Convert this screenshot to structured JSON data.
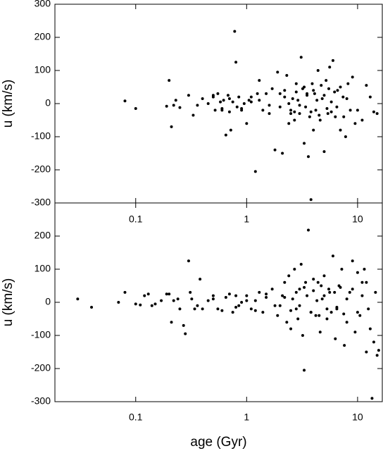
{
  "chart_data": [
    {
      "type": "scatter",
      "ylabel": "u (km/s)",
      "xlog": true,
      "color": "#000000",
      "xlim": [
        0.0187,
        16.7
      ],
      "ylim": [
        -300,
        300
      ],
      "xticks": [
        0.1,
        1,
        10
      ],
      "yticks": [
        -300,
        -200,
        -100,
        0,
        100,
        200,
        300
      ],
      "x": [
        0.08,
        0.1,
        0.19,
        0.2,
        0.21,
        0.22,
        0.23,
        0.25,
        0.3,
        0.33,
        0.36,
        0.4,
        0.45,
        0.5,
        0.52,
        0.55,
        0.58,
        0.6,
        0.62,
        0.65,
        0.68,
        0.7,
        0.72,
        0.75,
        0.78,
        0.8,
        0.82,
        0.85,
        0.9,
        0.95,
        1.0,
        1.05,
        1.1,
        1.2,
        1.25,
        1.3,
        1.4,
        1.5,
        1.6,
        1.7,
        1.8,
        1.9,
        2.0,
        2.1,
        2.2,
        2.3,
        2.4,
        2.5,
        2.6,
        2.7,
        2.8,
        2.9,
        3.0,
        3.1,
        3.2,
        3.3,
        3.4,
        3.5,
        3.6,
        3.7,
        3.8,
        3.9,
        4.0,
        4.1,
        4.2,
        4.4,
        4.6,
        4.8,
        5.0,
        5.2,
        5.4,
        5.6,
        5.8,
        6.0,
        6.3,
        6.6,
        7.0,
        7.4,
        7.8,
        8.2,
        8.6,
        9.0,
        9.5,
        10,
        11,
        12,
        13,
        14,
        15,
        2.2,
        2.5,
        2.8,
        3.0,
        3.3,
        3.5,
        3.8,
        4.0,
        4.3,
        4.5,
        4.7,
        5.0,
        5.3,
        5.5,
        5.8,
        6.2,
        6.5,
        7.0,
        7.5,
        8.0,
        0.5,
        0.6,
        0.7,
        0.9,
        1.1,
        1.3,
        1.6,
        2.0,
        2.4,
        2.7
      ],
      "values": [
        8,
        -15,
        -8,
        70,
        -70,
        -5,
        10,
        -12,
        25,
        -35,
        -5,
        15,
        0,
        25,
        -20,
        30,
        5,
        -20,
        10,
        -95,
        25,
        -25,
        -80,
        5,
        218,
        125,
        -10,
        20,
        -15,
        0,
        -60,
        10,
        20,
        -205,
        30,
        70,
        -20,
        30,
        -30,
        45,
        -140,
        95,
        -10,
        -150,
        40,
        85,
        -60,
        -20,
        15,
        -50,
        60,
        10,
        -30,
        140,
        45,
        -120,
        -10,
        25,
        -160,
        -40,
        -290,
        60,
        -80,
        30,
        -20,
        100,
        -50,
        15,
        -145,
        70,
        -30,
        110,
        5,
        130,
        -40,
        40,
        -80,
        20,
        -100,
        60,
        -20,
        80,
        -60,
        -20,
        -50,
        55,
        20,
        -25,
        -30,
        20,
        -30,
        35,
        -5,
        50,
        30,
        -25,
        40,
        10,
        -35,
        55,
        25,
        -15,
        45,
        -25,
        35,
        -10,
        50,
        -40,
        15,
        20,
        -15,
        15,
        -20,
        5,
        10,
        -5,
        30,
        0,
        -25
      ]
    },
    {
      "type": "scatter",
      "ylabel": "u (km/s)",
      "xlabel": "age (Gyr)",
      "xlog": true,
      "color": "#000000",
      "xlim": [
        0.0187,
        16.7
      ],
      "ylim": [
        -300,
        300
      ],
      "xticks": [
        0.1,
        1,
        10
      ],
      "yticks": [
        -300,
        -200,
        -100,
        0,
        100,
        200
      ],
      "x": [
        0.03,
        0.04,
        0.07,
        0.08,
        0.1,
        0.11,
        0.12,
        0.13,
        0.14,
        0.15,
        0.17,
        0.19,
        0.2,
        0.21,
        0.22,
        0.24,
        0.25,
        0.27,
        0.28,
        0.3,
        0.31,
        0.32,
        0.34,
        0.36,
        0.38,
        0.4,
        0.45,
        0.5,
        0.55,
        0.6,
        0.65,
        0.7,
        0.75,
        0.8,
        0.85,
        0.9,
        1.0,
        1.1,
        1.2,
        1.3,
        1.4,
        1.5,
        1.7,
        1.9,
        2.0,
        2.1,
        2.2,
        2.3,
        2.4,
        2.5,
        2.6,
        2.7,
        2.8,
        2.9,
        3.0,
        3.1,
        3.2,
        3.3,
        3.4,
        3.6,
        3.8,
        4.0,
        4.2,
        4.4,
        4.6,
        4.8,
        5.0,
        5.3,
        5.6,
        6.0,
        6.3,
        6.5,
        6.8,
        7.2,
        7.6,
        8.0,
        8.5,
        9.0,
        9.5,
        10,
        10.5,
        11,
        11.5,
        12,
        12.5,
        13,
        13.5,
        14,
        14.5,
        15,
        15.5,
        2.2,
        2.5,
        2.8,
        3.0,
        3.3,
        3.5,
        3.8,
        4.0,
        4.3,
        4.5,
        4.7,
        5.0,
        5.3,
        5.5,
        5.8,
        6.2,
        6.5,
        7.0,
        7.5,
        8.0,
        1.0,
        1.2,
        1.5,
        1.8,
        9,
        10,
        11,
        12,
        0.5,
        0.8
      ],
      "values": [
        10,
        -15,
        0,
        30,
        -5,
        -8,
        20,
        25,
        -10,
        -5,
        5,
        25,
        25,
        -60,
        5,
        10,
        -20,
        -70,
        -95,
        125,
        30,
        10,
        -20,
        -10,
        70,
        -20,
        5,
        20,
        -20,
        -25,
        15,
        25,
        -30,
        20,
        -10,
        0,
        20,
        -20,
        5,
        30,
        -30,
        25,
        40,
        -40,
        -10,
        20,
        60,
        -60,
        80,
        -80,
        10,
        100,
        -20,
        -50,
        40,
        115,
        -100,
        -205,
        60,
        218,
        -30,
        70,
        -40,
        60,
        -90,
        10,
        80,
        -50,
        30,
        140,
        -110,
        -20,
        50,
        100,
        -130,
        -60,
        30,
        125,
        -90,
        90,
        -40,
        60,
        100,
        -150,
        -20,
        -80,
        -290,
        -120,
        30,
        -160,
        -145,
        15,
        -25,
        30,
        -10,
        45,
        20,
        -30,
        35,
        5,
        -40,
        50,
        20,
        -20,
        40,
        -30,
        30,
        -15,
        45,
        -35,
        10,
        5,
        -25,
        15,
        -10,
        40,
        -30,
        20,
        60,
        10,
        -15
      ]
    }
  ]
}
